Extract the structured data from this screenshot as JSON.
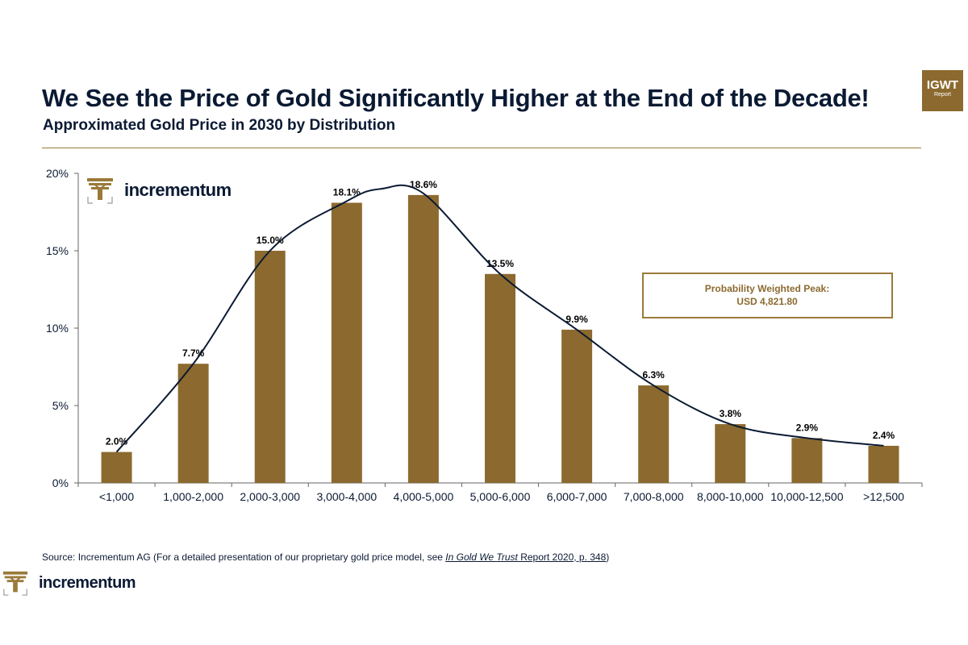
{
  "header": {
    "title": "We See the Price of Gold Significantly Higher at the End of the Decade!",
    "subtitle": "Approximated Gold Price in 2030 by Distribution"
  },
  "badge": {
    "main": "IGWT",
    "sub": "Report"
  },
  "logo": {
    "name": "incrementum"
  },
  "annotation": {
    "line1": "Probability Weighted Peak:",
    "line2": "USD 4,821.80"
  },
  "source": {
    "prefix": "Source: Incrementum AG (For a detailed presentation of our proprietary gold price model, see ",
    "italic": "In Gold We Trust",
    "link_rest": " Report 2020, p. 348",
    "suffix": ")"
  },
  "colors": {
    "bar": "#8c6a2f",
    "curve": "#0b1a33",
    "text": "#0b1a33"
  },
  "chart_data": {
    "type": "bar",
    "title": "Approximated Gold Price in 2030 by Distribution",
    "xlabel": "",
    "ylabel": "",
    "ylim": [
      0,
      20
    ],
    "yticks": [
      0,
      5,
      10,
      15,
      20
    ],
    "ytick_labels": [
      "0%",
      "5%",
      "10%",
      "15%",
      "20%"
    ],
    "categories": [
      "<1,000",
      "1,000-2,000",
      "2,000-3,000",
      "3,000-4,000",
      "4,000-5,000",
      "5,000-6,000",
      "6,000-7,000",
      "7,000-8,000",
      "8,000-10,000",
      "10,000-12,500",
      ">12,500"
    ],
    "values": [
      2.0,
      7.7,
      15.0,
      18.1,
      18.6,
      13.5,
      9.9,
      6.3,
      3.8,
      2.9,
      2.4
    ],
    "data_labels": [
      "2.0%",
      "7.7%",
      "15.0%",
      "18.1%",
      "18.6%",
      "13.5%",
      "9.9%",
      "6.3%",
      "3.8%",
      "2.9%",
      "2.4%"
    ],
    "curve": {
      "type": "smoothed distribution line",
      "peak_value": 19.0,
      "peak_between": [
        "3,000-4,000",
        "4,000-5,000"
      ]
    },
    "grid": false,
    "legend": "none"
  }
}
